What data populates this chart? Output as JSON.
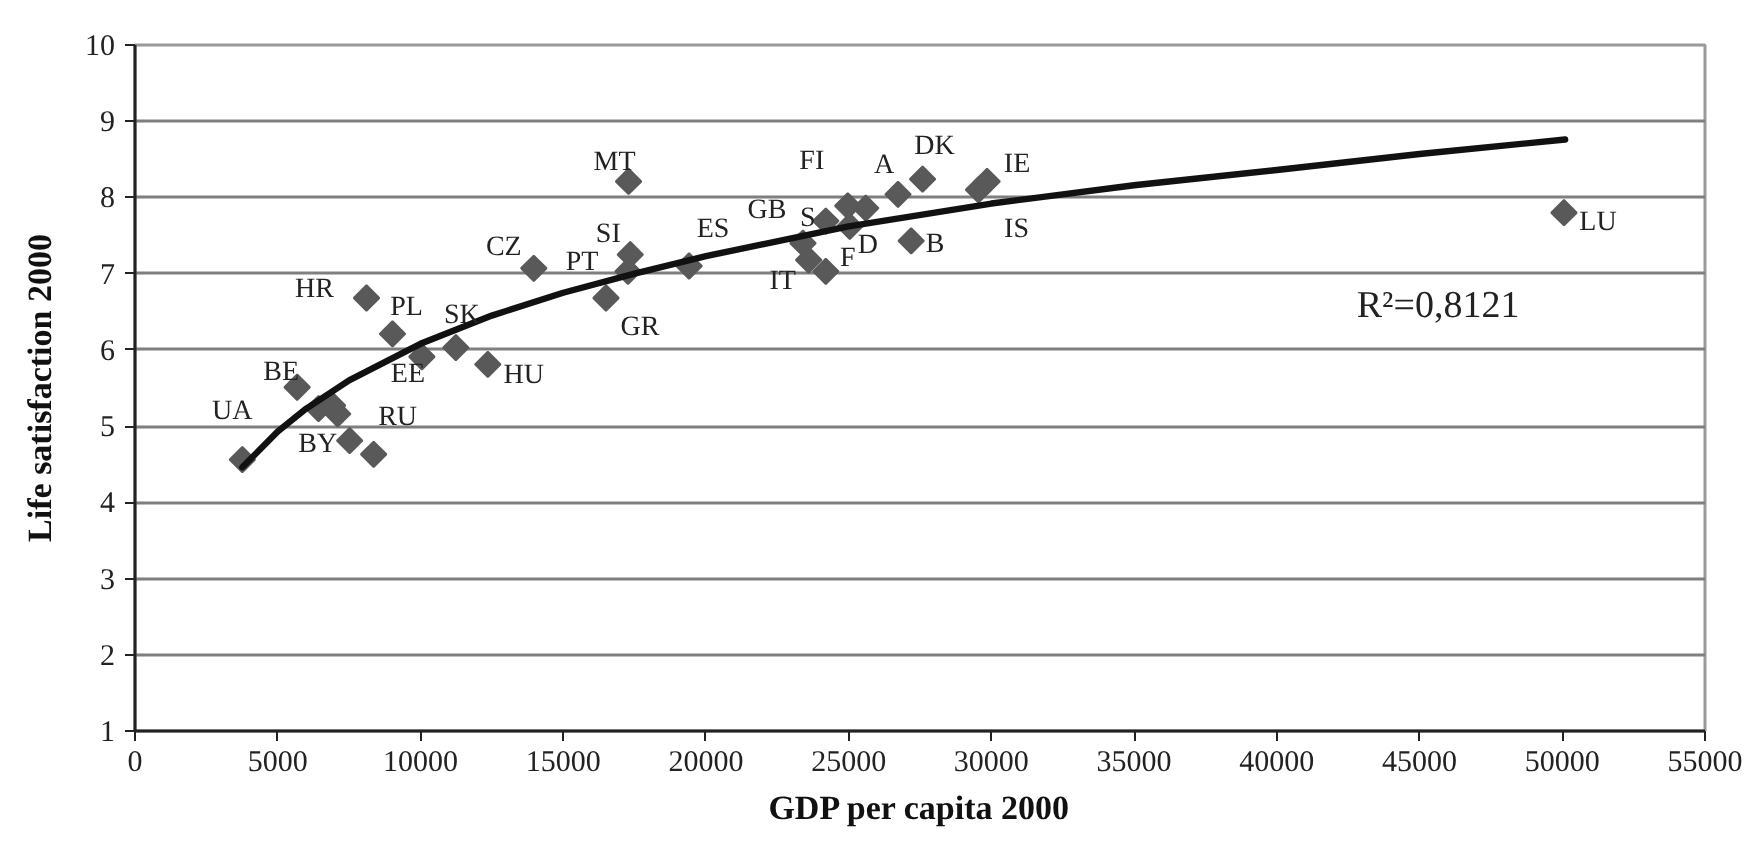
{
  "chart_data": {
    "type": "scatter",
    "xlabel": "GDP per capita 2000",
    "ylabel": "Life satisfaction 2000",
    "xlim": [
      0,
      55000
    ],
    "ylim": [
      1,
      10
    ],
    "xticks": [
      0,
      5000,
      10000,
      15000,
      20000,
      25000,
      30000,
      35000,
      40000,
      45000,
      50000,
      55000
    ],
    "yticks": [
      1,
      2,
      3,
      4,
      5,
      6,
      7,
      8,
      9,
      10
    ],
    "grid": "y",
    "marker": "diamond",
    "series": [
      {
        "color": "#595959",
        "x": [
          3760,
          5680,
          6430,
          6920,
          7100,
          7520,
          8360,
          8110,
          9020,
          10050,
          11240,
          12360,
          13970,
          16500,
          17270,
          17350,
          17290,
          19410,
          23400,
          23600,
          24200,
          24200,
          24970,
          25040,
          25600,
          26730,
          27190,
          27590,
          29550,
          29850,
          50060
        ],
        "values": [
          4.56,
          5.51,
          5.23,
          5.27,
          5.16,
          4.81,
          4.63,
          6.68,
          6.21,
          5.91,
          6.03,
          5.81,
          7.07,
          6.68,
          7.03,
          7.25,
          8.21,
          7.1,
          7.4,
          7.18,
          7.69,
          7.03,
          7.89,
          7.62,
          7.86,
          8.04,
          7.43,
          8.24,
          8.1,
          8.21,
          7.8
        ]
      },
      {
        "type": "line",
        "color": "#111111",
        "marker": "none",
        "x": [
          3760,
          5000,
          6000,
          7500,
          10000,
          12500,
          15000,
          17500,
          20000,
          25000,
          30000,
          35000,
          40000,
          45000,
          50100
        ],
        "values": [
          4.46,
          4.93,
          5.23,
          5.6,
          6.08,
          6.45,
          6.75,
          7.0,
          7.23,
          7.62,
          7.92,
          8.16,
          8.36,
          8.57,
          8.76
        ]
      }
    ],
    "annotations": [
      {
        "text": "UA",
        "x": 3760,
        "y": 4.56
      },
      {
        "text": "BE",
        "x": 5680,
        "y": 5.51
      },
      {
        "text": "BY",
        "x": 7520,
        "y": 4.81
      },
      {
        "text": "RU",
        "x": 8360,
        "y": 4.63
      },
      {
        "text": "HR",
        "x": 8110,
        "y": 6.68
      },
      {
        "text": "PL",
        "x": 9020,
        "y": 6.21
      },
      {
        "text": "EE",
        "x": 10050,
        "y": 5.91
      },
      {
        "text": "SK",
        "x": 11240,
        "y": 6.03
      },
      {
        "text": "HU",
        "x": 12360,
        "y": 5.81
      },
      {
        "text": "CZ",
        "x": 13970,
        "y": 7.07
      },
      {
        "text": "PT",
        "x": 17270,
        "y": 7.03
      },
      {
        "text": "SI",
        "x": 17350,
        "y": 7.25
      },
      {
        "text": "MT",
        "x": 17290,
        "y": 8.21
      },
      {
        "text": "GR",
        "x": 16500,
        "y": 6.68
      },
      {
        "text": "ES",
        "x": 19410,
        "y": 7.1
      },
      {
        "text": "FI",
        "x": 24970,
        "y": 7.89
      },
      {
        "text": "A",
        "x": 26730,
        "y": 8.04
      },
      {
        "text": "DK",
        "x": 27590,
        "y": 8.24
      },
      {
        "text": "IE",
        "x": 29850,
        "y": 8.21
      },
      {
        "text": "GB",
        "x": 23400,
        "y": 7.4
      },
      {
        "text": "S",
        "x": 24200,
        "y": 7.69
      },
      {
        "text": "D",
        "x": 25040,
        "y": 7.62
      },
      {
        "text": "B",
        "x": 27190,
        "y": 7.43
      },
      {
        "text": "IS",
        "x": 29550,
        "y": 8.1
      },
      {
        "text": "IT",
        "x": 23600,
        "y": 7.18
      },
      {
        "text": "F",
        "x": 24200,
        "y": 7.03
      },
      {
        "text": "LU",
        "x": 50060,
        "y": 7.8
      },
      "R²=0,8121"
    ]
  }
}
